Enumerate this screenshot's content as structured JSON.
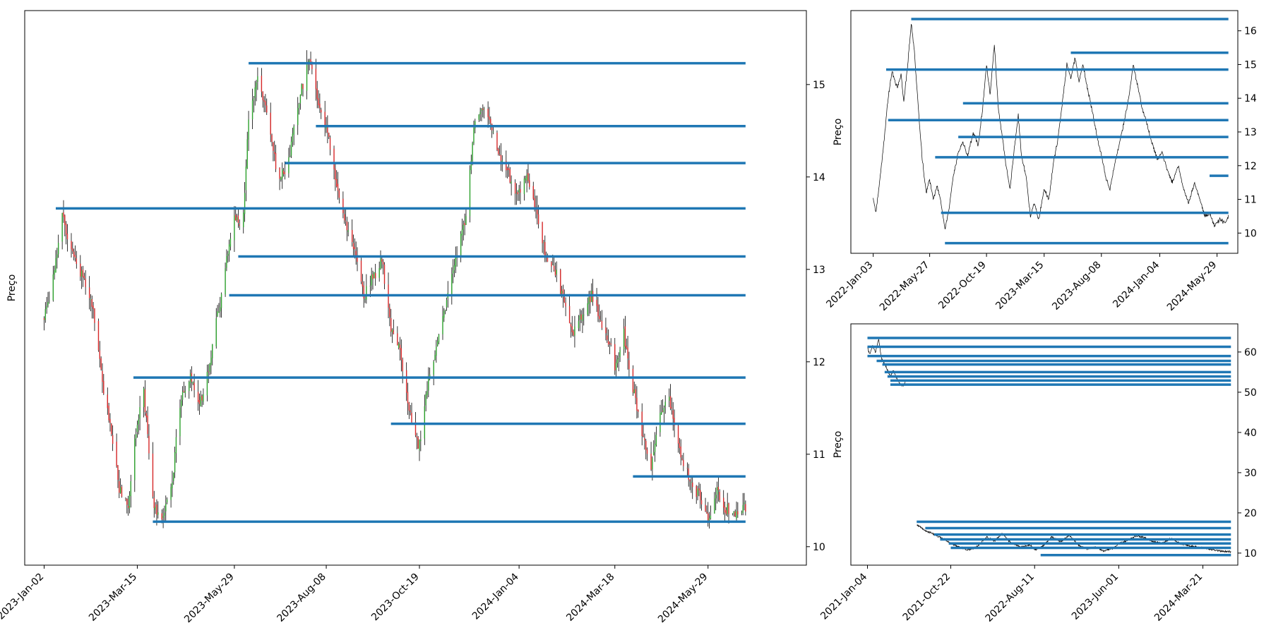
{
  "colors": {
    "level_line": "#1f77b4",
    "candle_up": "#2ca02c",
    "candle_down": "#d62728",
    "wick": "#000000",
    "price_line": "#000000"
  },
  "chart_data": [
    {
      "type": "candlestick",
      "ylabel": "Preço",
      "x_range": [
        "2022-12-18",
        "2024-08-13"
      ],
      "ylim": [
        9.8,
        15.8
      ],
      "y_axis_side": "right",
      "grid": false,
      "xticks": [
        "2023-Jan-02",
        "2023-Mar-15",
        "2023-May-29",
        "2023-Aug-08",
        "2023-Oct-19",
        "2024-Jan-04",
        "2024-Mar-18",
        "2024-May-29"
      ],
      "yticks": [
        10,
        11,
        12,
        13,
        14,
        15
      ],
      "price_path": [
        [
          "2023-01-02",
          12.45
        ],
        [
          "2023-01-09",
          12.9
        ],
        [
          "2023-01-16",
          13.6
        ],
        [
          "2023-01-23",
          13.2
        ],
        [
          "2023-02-01",
          12.95
        ],
        [
          "2023-02-08",
          12.6
        ],
        [
          "2023-02-15",
          11.9
        ],
        [
          "2023-02-22",
          11.3
        ],
        [
          "2023-03-01",
          10.6
        ],
        [
          "2023-03-08",
          10.45
        ],
        [
          "2023-03-13",
          11.2
        ],
        [
          "2023-03-20",
          11.7
        ],
        [
          "2023-03-27",
          10.5
        ],
        [
          "2023-04-03",
          10.3
        ],
        [
          "2023-04-11",
          10.7
        ],
        [
          "2023-04-18",
          11.6
        ],
        [
          "2023-04-25",
          11.8
        ],
        [
          "2023-05-02",
          11.5
        ],
        [
          "2023-05-10",
          12.0
        ],
        [
          "2023-05-17",
          12.6
        ],
        [
          "2023-05-24",
          13.2
        ],
        [
          "2023-05-29",
          13.5
        ],
        [
          "2023-06-05",
          13.6
        ],
        [
          "2023-06-09",
          14.6
        ],
        [
          "2023-06-16",
          15.1
        ],
        [
          "2023-06-23",
          14.7
        ],
        [
          "2023-06-30",
          14.1
        ],
        [
          "2023-07-07",
          14.0
        ],
        [
          "2023-07-14",
          14.5
        ],
        [
          "2023-07-19",
          14.9
        ],
        [
          "2023-07-26",
          15.3
        ],
        [
          "2023-08-02",
          14.8
        ],
        [
          "2023-08-08",
          14.6
        ],
        [
          "2023-08-16",
          13.9
        ],
        [
          "2023-08-23",
          13.5
        ],
        [
          "2023-08-30",
          13.2
        ],
        [
          "2023-09-06",
          12.7
        ],
        [
          "2023-09-13",
          12.9
        ],
        [
          "2023-09-20",
          13.1
        ],
        [
          "2023-09-27",
          12.4
        ],
        [
          "2023-10-04",
          12.1
        ],
        [
          "2023-10-11",
          11.5
        ],
        [
          "2023-10-16",
          11.2
        ],
        [
          "2023-10-19",
          11.1
        ],
        [
          "2023-10-26",
          11.8
        ],
        [
          "2023-11-02",
          12.2
        ],
        [
          "2023-11-09",
          12.7
        ],
        [
          "2023-11-16",
          13.1
        ],
        [
          "2023-11-23",
          13.5
        ],
        [
          "2023-11-30",
          14.5
        ],
        [
          "2023-12-07",
          14.8
        ],
        [
          "2023-12-14",
          14.5
        ],
        [
          "2023-12-21",
          14.2
        ],
        [
          "2024-01-04",
          13.8
        ],
        [
          "2024-01-11",
          14.0
        ],
        [
          "2024-01-18",
          13.6
        ],
        [
          "2024-01-25",
          13.1
        ],
        [
          "2024-02-01",
          13.0
        ],
        [
          "2024-02-08",
          12.6
        ],
        [
          "2024-02-15",
          12.3
        ],
        [
          "2024-02-22",
          12.5
        ],
        [
          "2024-02-29",
          12.7
        ],
        [
          "2024-03-07",
          12.4
        ],
        [
          "2024-03-14",
          12.2
        ],
        [
          "2024-03-18",
          11.9
        ],
        [
          "2024-03-25",
          12.3
        ],
        [
          "2024-04-01",
          11.7
        ],
        [
          "2024-04-08",
          11.2
        ],
        [
          "2024-04-15",
          10.9
        ],
        [
          "2024-04-22",
          11.4
        ],
        [
          "2024-04-29",
          11.6
        ],
        [
          "2024-05-06",
          11.1
        ],
        [
          "2024-05-13",
          10.8
        ],
        [
          "2024-05-20",
          10.6
        ],
        [
          "2024-05-29",
          10.3
        ],
        [
          "2024-06-05",
          10.6
        ],
        [
          "2024-06-12",
          10.4
        ],
        [
          "2024-06-19",
          10.35
        ],
        [
          "2024-06-27",
          10.45
        ]
      ],
      "levels": [
        {
          "start": "2023-01-11",
          "y": 13.66
        },
        {
          "start": "2023-03-12",
          "y": 11.83
        },
        {
          "start": "2023-03-27",
          "y": 10.27
        },
        {
          "start": "2023-05-25",
          "y": 12.72
        },
        {
          "start": "2023-06-01",
          "y": 13.14
        },
        {
          "start": "2023-06-09",
          "y": 15.23
        },
        {
          "start": "2023-07-07",
          "y": 14.15
        },
        {
          "start": "2023-07-31",
          "y": 14.55
        },
        {
          "start": "2023-09-27",
          "y": 11.33
        },
        {
          "start": "2024-04-01",
          "y": 10.76
        }
      ],
      "level_end": "2024-06-27"
    },
    {
      "type": "line",
      "ylabel": "Preço",
      "x_range": [
        "2021-11-07",
        "2024-07-21"
      ],
      "ylim": [
        9.4,
        16.6
      ],
      "y_axis_side": "right",
      "grid": false,
      "xticks": [
        "2022-Jan-03",
        "2022-May-27",
        "2022-Oct-19",
        "2023-Mar-15",
        "2023-Aug-08",
        "2024-Jan-04",
        "2024-May-29"
      ],
      "yticks": [
        10,
        11,
        12,
        13,
        14,
        15,
        16
      ],
      "price_path": [
        [
          "2022-01-03",
          11.0
        ],
        [
          "2022-01-10",
          10.6
        ],
        [
          "2022-01-20",
          11.6
        ],
        [
          "2022-02-01",
          12.9
        ],
        [
          "2022-02-10",
          14.0
        ],
        [
          "2022-02-20",
          14.8
        ],
        [
          "2022-03-05",
          14.3
        ],
        [
          "2022-03-15",
          14.7
        ],
        [
          "2022-03-22",
          13.9
        ],
        [
          "2022-04-01",
          15.0
        ],
        [
          "2022-04-10",
          16.2
        ],
        [
          "2022-04-18",
          15.4
        ],
        [
          "2022-04-28",
          13.7
        ],
        [
          "2022-05-08",
          12.2
        ],
        [
          "2022-05-18",
          11.2
        ],
        [
          "2022-05-27",
          11.6
        ],
        [
          "2022-06-05",
          11.0
        ],
        [
          "2022-06-15",
          11.4
        ],
        [
          "2022-06-25",
          10.9
        ],
        [
          "2022-07-05",
          10.1
        ],
        [
          "2022-07-15",
          10.7
        ],
        [
          "2022-07-25",
          11.6
        ],
        [
          "2022-08-08",
          12.4
        ],
        [
          "2022-08-20",
          12.7
        ],
        [
          "2022-09-01",
          12.3
        ],
        [
          "2022-09-15",
          13.0
        ],
        [
          "2022-09-28",
          12.6
        ],
        [
          "2022-10-10",
          13.8
        ],
        [
          "2022-10-19",
          15.0
        ],
        [
          "2022-10-28",
          14.1
        ],
        [
          "2022-11-08",
          15.6
        ],
        [
          "2022-11-18",
          13.7
        ],
        [
          "2022-11-28",
          12.9
        ],
        [
          "2022-12-08",
          12.0
        ],
        [
          "2022-12-18",
          11.3
        ],
        [
          "2022-12-28",
          12.4
        ],
        [
          "2023-01-08",
          13.5
        ],
        [
          "2023-01-16",
          12.3
        ],
        [
          "2023-01-28",
          11.7
        ],
        [
          "2023-02-08",
          10.5
        ],
        [
          "2023-02-18",
          10.9
        ],
        [
          "2023-03-01",
          10.4
        ],
        [
          "2023-03-15",
          11.3
        ],
        [
          "2023-03-27",
          11.0
        ],
        [
          "2023-04-08",
          12.1
        ],
        [
          "2023-04-18",
          12.7
        ],
        [
          "2023-05-01",
          13.9
        ],
        [
          "2023-05-12",
          15.0
        ],
        [
          "2023-05-22",
          14.6
        ],
        [
          "2023-06-02",
          15.2
        ],
        [
          "2023-06-12",
          14.5
        ],
        [
          "2023-06-22",
          15.0
        ],
        [
          "2023-07-05",
          14.2
        ],
        [
          "2023-07-18",
          13.5
        ],
        [
          "2023-07-29",
          12.8
        ],
        [
          "2023-08-08",
          12.3
        ],
        [
          "2023-08-20",
          11.6
        ],
        [
          "2023-08-30",
          11.3
        ],
        [
          "2023-09-10",
          12.0
        ],
        [
          "2023-09-22",
          12.6
        ],
        [
          "2023-10-05",
          13.3
        ],
        [
          "2023-10-18",
          14.1
        ],
        [
          "2023-10-28",
          15.0
        ],
        [
          "2023-11-08",
          14.4
        ],
        [
          "2023-11-20",
          13.7
        ],
        [
          "2023-12-01",
          13.3
        ],
        [
          "2023-12-14",
          12.7
        ],
        [
          "2023-12-28",
          12.2
        ],
        [
          "2024-01-10",
          12.4
        ],
        [
          "2024-01-22",
          11.9
        ],
        [
          "2024-02-05",
          11.5
        ],
        [
          "2024-02-20",
          12.0
        ],
        [
          "2024-03-05",
          11.3
        ],
        [
          "2024-03-18",
          10.9
        ],
        [
          "2024-04-01",
          11.5
        ],
        [
          "2024-04-15",
          11.0
        ],
        [
          "2024-04-28",
          10.5
        ],
        [
          "2024-05-10",
          10.6
        ],
        [
          "2024-05-22",
          10.2
        ],
        [
          "2024-06-05",
          10.4
        ],
        [
          "2024-06-20",
          10.3
        ],
        [
          "2024-06-27",
          10.5
        ]
      ],
      "levels": [
        {
          "start": "2022-02-05",
          "y": 14.85
        },
        {
          "start": "2022-02-10",
          "y": 13.35
        },
        {
          "start": "2022-04-10",
          "y": 16.35
        },
        {
          "start": "2022-06-10",
          "y": 12.25
        },
        {
          "start": "2022-06-25",
          "y": 10.6
        },
        {
          "start": "2022-07-05",
          "y": 9.7
        },
        {
          "start": "2022-08-20",
          "y": 13.85
        },
        {
          "start": "2022-08-08",
          "y": 12.85
        },
        {
          "start": "2023-05-22",
          "y": 15.35
        },
        {
          "start": "2024-05-10",
          "y": 11.7
        }
      ],
      "level_end": "2024-06-27"
    },
    {
      "type": "line",
      "ylabel": "Preço",
      "x_range": [
        "2020-11-07",
        "2024-07-21"
      ],
      "ylim": [
        7,
        67
      ],
      "y_axis_side": "right",
      "grid": false,
      "xticks": [
        "2021-Jan-04",
        "2021-Oct-22",
        "2022-Aug-11",
        "2023-Jun-01",
        "2024-Mar-21"
      ],
      "yticks": [
        10,
        20,
        30,
        40,
        50,
        60
      ],
      "price_path": [
        [
          "2021-01-04",
          61.0
        ],
        [
          "2021-01-12",
          59.5
        ],
        [
          "2021-01-22",
          61.5
        ],
        [
          "2021-02-01",
          60.0
        ],
        [
          "2021-02-12",
          63.2
        ],
        [
          "2021-02-22",
          58.5
        ],
        [
          "2021-03-05",
          57.0
        ],
        [
          "2021-03-15",
          55.5
        ],
        [
          "2021-03-25",
          54.0
        ],
        [
          "2021-04-05",
          55.5
        ],
        [
          "2021-04-15",
          53.5
        ],
        [
          "2021-04-28",
          52.0
        ],
        [
          "2021-05-10",
          51.5
        ],
        [
          "2021-05-18",
          53.0
        ],
        [
          "2021-06-25",
          17.0
        ],
        [
          "2021-07-10",
          16.5
        ],
        [
          "2021-07-25",
          15.5
        ],
        [
          "2021-08-15",
          15.0
        ],
        [
          "2021-09-05",
          14.2
        ],
        [
          "2021-10-01",
          13.5
        ],
        [
          "2021-10-22",
          12.5
        ],
        [
          "2021-11-20",
          11.5
        ],
        [
          "2021-12-20",
          10.8
        ],
        [
          "2022-01-20",
          11.5
        ],
        [
          "2022-02-25",
          14.0
        ],
        [
          "2022-03-25",
          13.0
        ],
        [
          "2022-04-20",
          15.0
        ],
        [
          "2022-05-20",
          12.5
        ],
        [
          "2022-06-25",
          11.5
        ],
        [
          "2022-07-25",
          12.0
        ],
        [
          "2022-08-11",
          10.8
        ],
        [
          "2022-09-10",
          11.8
        ],
        [
          "2022-10-10",
          14.0
        ],
        [
          "2022-11-10",
          12.8
        ],
        [
          "2022-12-10",
          14.5
        ],
        [
          "2023-01-10",
          12.0
        ],
        [
          "2023-02-10",
          11.0
        ],
        [
          "2023-03-10",
          11.5
        ],
        [
          "2023-04-10",
          10.5
        ],
        [
          "2023-05-10",
          11.2
        ],
        [
          "2023-06-01",
          12.3
        ],
        [
          "2023-07-01",
          13.2
        ],
        [
          "2023-08-01",
          14.3
        ],
        [
          "2023-09-01",
          13.8
        ],
        [
          "2023-10-01",
          12.8
        ],
        [
          "2023-11-01",
          12.5
        ],
        [
          "2023-12-01",
          13.6
        ],
        [
          "2024-01-01",
          12.4
        ],
        [
          "2024-02-01",
          11.8
        ],
        [
          "2024-03-21",
          11.3
        ],
        [
          "2024-04-25",
          10.8
        ],
        [
          "2024-05-25",
          10.5
        ],
        [
          "2024-06-27",
          10.3
        ]
      ],
      "levels": [
        {
          "start": "2021-01-04",
          "y": 63.5
        },
        {
          "start": "2021-01-04",
          "y": 61.3
        },
        {
          "start": "2021-01-04",
          "y": 59.0
        },
        {
          "start": "2021-02-05",
          "y": 57.8
        },
        {
          "start": "2021-02-25",
          "y": 56.9
        },
        {
          "start": "2021-03-05",
          "y": 55.0
        },
        {
          "start": "2021-03-15",
          "y": 53.9
        },
        {
          "start": "2021-03-25",
          "y": 52.9
        },
        {
          "start": "2021-03-25",
          "y": 51.9
        },
        {
          "start": "2021-06-25",
          "y": 17.8
        },
        {
          "start": "2021-07-25",
          "y": 16.2
        },
        {
          "start": "2021-08-25",
          "y": 14.6
        },
        {
          "start": "2021-09-15",
          "y": 13.4
        },
        {
          "start": "2021-10-15",
          "y": 12.4
        },
        {
          "start": "2021-10-22",
          "y": 11.3
        },
        {
          "start": "2022-09-01",
          "y": 9.5
        }
      ],
      "level_end": "2024-06-27"
    }
  ]
}
